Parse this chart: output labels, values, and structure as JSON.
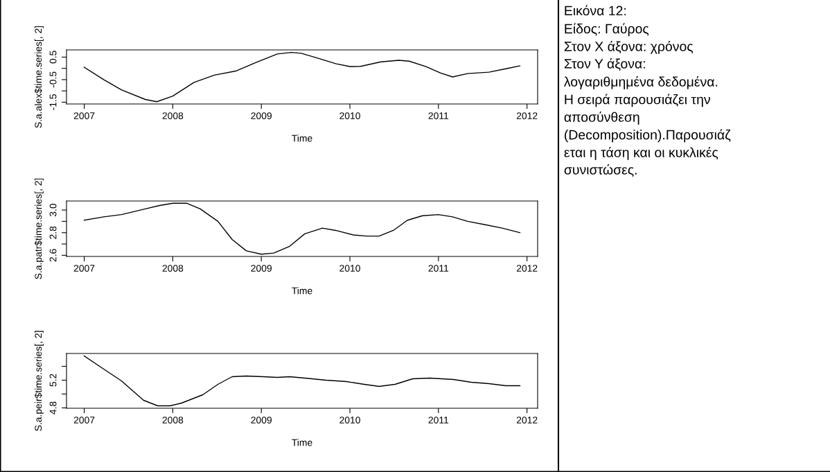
{
  "chart_data": [
    {
      "type": "line",
      "xlabel": "Time",
      "ylabel": "S.a.alex$time.series[, 2]",
      "xlim": [
        2006.8,
        2012.12
      ],
      "ylim": [
        -1.58,
        0.82
      ],
      "xticks": [
        2007,
        2008,
        2009,
        2010,
        2011,
        2012
      ],
      "yticks": [
        -1.5,
        {
          "value": -1,
          "label": null
        },
        -0.5,
        {
          "value": 0,
          "label": null
        },
        0.5
      ],
      "grid": false,
      "legend": false,
      "x": [
        2007,
        2007.22,
        2007.42,
        2007.69,
        2007.82,
        2008.0,
        2008.24,
        2008.47,
        2008.71,
        2008.94,
        2009.18,
        2009.34,
        2009.45,
        2009.65,
        2009.84,
        2010.0,
        2010.12,
        2010.35,
        2010.55,
        2010.67,
        2010.86,
        2011.02,
        2011.16,
        2011.33,
        2011.57,
        2011.76,
        2011.92
      ],
      "series": [
        {
          "color": "#000000",
          "values": [
            0.05,
            -0.5,
            -0.95,
            -1.38,
            -1.48,
            -1.23,
            -0.62,
            -0.3,
            -0.12,
            0.26,
            0.64,
            0.71,
            0.67,
            0.44,
            0.21,
            0.08,
            0.09,
            0.29,
            0.36,
            0.32,
            0.08,
            -0.2,
            -0.38,
            -0.23,
            -0.17,
            -0.02,
            0.11
          ]
        }
      ]
    },
    {
      "type": "line",
      "xlabel": "Time",
      "ylabel": "S.a.patr$time.series[, 2]",
      "xlim": [
        2006.8,
        2012.12
      ],
      "ylim": [
        2.59,
        3.08
      ],
      "xticks": [
        2007,
        2008,
        2009,
        2010,
        2011,
        2012
      ],
      "yticks": [
        2.6,
        {
          "value": 2.7,
          "label": null
        },
        2.8,
        {
          "value": 2.9,
          "label": null
        },
        {
          "value": 3.0,
          "label": "3.0"
        }
      ],
      "grid": false,
      "legend": false,
      "x": [
        2007,
        2007.22,
        2007.42,
        2007.69,
        2007.85,
        2008.0,
        2008.16,
        2008.31,
        2008.51,
        2008.67,
        2008.83,
        2009.0,
        2009.14,
        2009.32,
        2009.49,
        2009.69,
        2009.84,
        2010.04,
        2010.19,
        2010.33,
        2010.49,
        2010.65,
        2010.82,
        2011.0,
        2011.16,
        2011.33,
        2011.53,
        2011.72,
        2011.92
      ],
      "series": [
        {
          "color": "#000000",
          "values": [
            2.91,
            2.94,
            2.96,
            3.01,
            3.04,
            3.06,
            3.06,
            3.01,
            2.9,
            2.74,
            2.64,
            2.61,
            2.62,
            2.68,
            2.79,
            2.84,
            2.82,
            2.78,
            2.77,
            2.77,
            2.82,
            2.91,
            2.95,
            2.96,
            2.94,
            2.9,
            2.87,
            2.84,
            2.8
          ]
        }
      ]
    },
    {
      "type": "line",
      "xlabel": "Time",
      "ylabel": "S.a.peir$time.series[, 2]",
      "xlim": [
        2006.8,
        2012.12
      ],
      "ylim": [
        4.795,
        5.585
      ],
      "xticks": [
        2007,
        2008,
        2009,
        2010,
        2011,
        2012
      ],
      "yticks": [
        4.8,
        {
          "value": 5.0,
          "label": null
        },
        5.2,
        {
          "value": 5.4,
          "label": null
        }
      ],
      "grid": false,
      "legend": false,
      "x": [
        2007,
        2007.22,
        2007.42,
        2007.67,
        2007.83,
        2007.97,
        2008.1,
        2008.34,
        2008.51,
        2008.67,
        2008.83,
        2009.02,
        2009.18,
        2009.32,
        2009.49,
        2009.73,
        2009.96,
        2010.16,
        2010.33,
        2010.51,
        2010.71,
        2010.9,
        2011.17,
        2011.37,
        2011.57,
        2011.76,
        2011.92
      ],
      "series": [
        {
          "color": "#000000",
          "values": [
            5.55,
            5.36,
            5.19,
            4.91,
            4.83,
            4.83,
            4.87,
            4.99,
            5.14,
            5.25,
            5.26,
            5.25,
            5.24,
            5.25,
            5.23,
            5.2,
            5.18,
            5.14,
            5.11,
            5.14,
            5.22,
            5.23,
            5.21,
            5.17,
            5.15,
            5.12,
            5.12
          ]
        }
      ]
    },
    {
      "type": "other",
      "annotations": [
        "Εικόνα 12:",
        "Είδος: Γαύρος",
        "Στον Χ άξονα: χρόνος",
        "Στον Υ άξονα:",
        "λογαριθμημένα δεδομένα.",
        "Η σειρά παρουσιάζει την",
        "αποσύνθεση",
        "(Decomposition).Παρουσιάζ",
        "εται η τάση και οι κυκλικές",
        "συνιστώσες."
      ]
    }
  ]
}
